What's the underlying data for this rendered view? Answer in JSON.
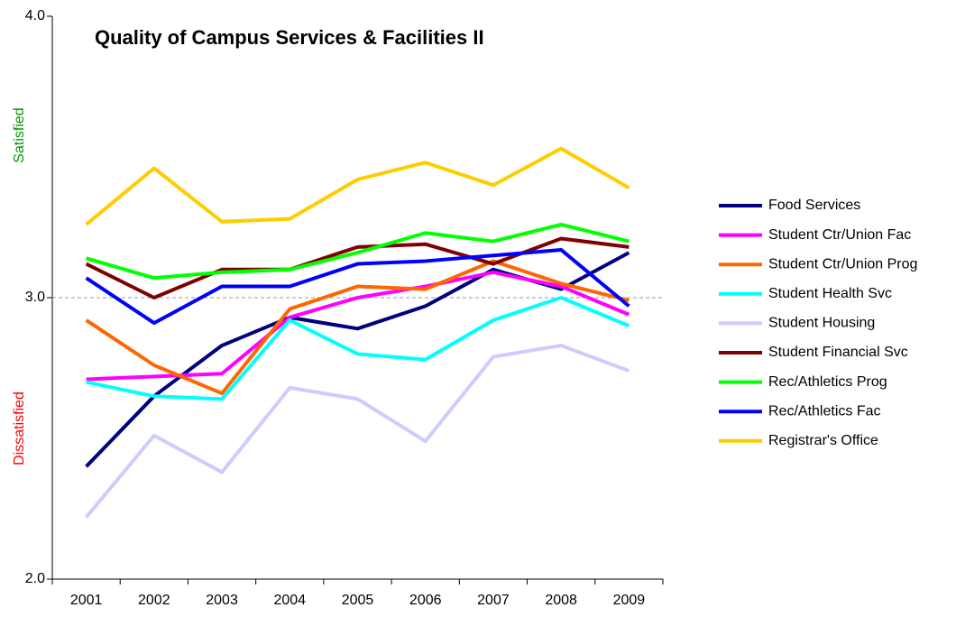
{
  "chart_data": {
    "type": "line",
    "title": "Quality of Campus Services & Facilities II",
    "categories": [
      "2001",
      "2002",
      "2003",
      "2004",
      "2005",
      "2006",
      "2007",
      "2008",
      "2009"
    ],
    "series": [
      {
        "name": "Food Services",
        "color": "#000080",
        "values": [
          2.4,
          2.65,
          2.83,
          2.93,
          2.89,
          2.97,
          3.1,
          3.03,
          3.16
        ]
      },
      {
        "name": "Student Ctr/Union Fac",
        "color": "#ff00ff",
        "values": [
          2.71,
          2.72,
          2.73,
          2.93,
          3.0,
          3.04,
          3.09,
          3.04,
          2.94
        ]
      },
      {
        "name": "Student Ctr/Union Prog",
        "color": "#ff6600",
        "values": [
          2.92,
          2.76,
          2.66,
          2.96,
          3.04,
          3.03,
          3.13,
          3.05,
          2.99
        ]
      },
      {
        "name": "Student Health Svc",
        "color": "#00ffff",
        "values": [
          2.7,
          2.65,
          2.64,
          2.92,
          2.8,
          2.78,
          2.92,
          3.0,
          2.9
        ]
      },
      {
        "name": "Student Housing",
        "color": "#ccccff",
        "values": [
          2.22,
          2.51,
          2.38,
          2.68,
          2.64,
          2.49,
          2.79,
          2.83,
          2.74
        ]
      },
      {
        "name": "Student Financial Svc",
        "color": "#800000",
        "values": [
          3.12,
          3.0,
          3.1,
          3.1,
          3.18,
          3.19,
          3.12,
          3.21,
          3.18
        ]
      },
      {
        "name": "Rec/Athletics Prog",
        "color": "#00ff00",
        "values": [
          3.14,
          3.07,
          3.09,
          3.1,
          3.16,
          3.23,
          3.2,
          3.26,
          3.2
        ]
      },
      {
        "name": "Rec/Athletics Fac",
        "color": "#0000ff",
        "values": [
          3.07,
          2.91,
          3.04,
          3.04,
          3.12,
          3.13,
          3.15,
          3.17,
          2.97
        ]
      },
      {
        "name": "Registrar's Office",
        "color": "#ffcc00",
        "values": [
          3.26,
          3.46,
          3.27,
          3.28,
          3.42,
          3.48,
          3.4,
          3.53,
          3.39
        ]
      }
    ],
    "ylim": [
      2,
      4
    ],
    "yticks": [
      {
        "value": 2,
        "label": "2.0"
      },
      {
        "value": 3,
        "label": "3.0"
      },
      {
        "value": 4,
        "label": "4.0"
      }
    ],
    "reference_line": 3,
    "annotations": [
      {
        "text": "Satisfied",
        "color": "#009900"
      },
      {
        "text": "Dissatisfied",
        "color": "#ff0000"
      }
    ],
    "legend": "right"
  }
}
